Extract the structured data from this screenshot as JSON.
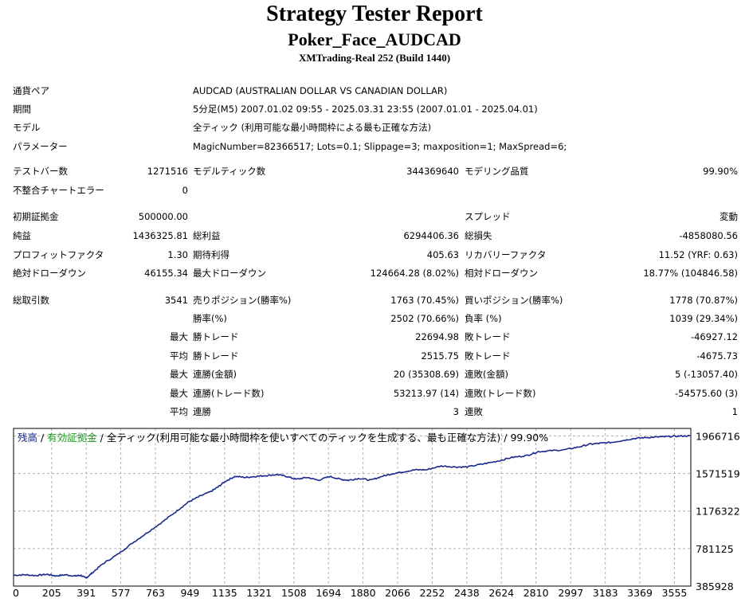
{
  "header": {
    "title": "Strategy Tester Report",
    "ea_name": "Poker_Face_AUDCAD",
    "server": "XMTrading-Real 252 (Build 1440)"
  },
  "settings": [
    {
      "label": "通貨ペア",
      "value": "AUDCAD (AUSTRALIAN DOLLAR VS CANADIAN DOLLAR)"
    },
    {
      "label": "期間",
      "value": "5分足(M5) 2007.01.02 09:55 - 2025.03.31 23:55 (2007.01.01 - 2025.04.01)"
    },
    {
      "label": "モデル",
      "value": "全ティック (利用可能な最小時間枠による最も正確な方法)"
    },
    {
      "label": "パラメーター",
      "value": "MagicNumber=82366517; Lots=0.1; Slippage=3; maxposition=1; MaxSpread=6;"
    }
  ],
  "test_info": {
    "bars_label": "テストバー数",
    "bars_value": "1271516",
    "ticks_label": "モデルティック数",
    "ticks_value": "344369640",
    "quality_label": "モデリング品質",
    "quality_value": "99.90%",
    "errors_label": "不整合チャートエラー",
    "errors_value": "0"
  },
  "results": {
    "initial_deposit_label": "初期証拠金",
    "initial_deposit_value": "500000.00",
    "spread_label": "スプレッド",
    "spread_value": "変動",
    "net_profit_label": "純益",
    "net_profit_value": "1436325.81",
    "gross_profit_label": "総利益",
    "gross_profit_value": "6294406.36",
    "gross_loss_label": "総損失",
    "gross_loss_value": "-4858080.56",
    "profit_factor_label": "プロフィットファクタ",
    "profit_factor_value": "1.30",
    "expected_payoff_label": "期待利得",
    "expected_payoff_value": "405.63",
    "recovery_factor_label": "リカバリーファクタ",
    "recovery_factor_value": "11.52 (YRF: 0.63)",
    "abs_dd_label": "絶対ドローダウン",
    "abs_dd_value": "46155.34",
    "max_dd_label": "最大ドローダウン",
    "max_dd_value": "124664.28 (8.02%)",
    "rel_dd_label": "相対ドローダウン",
    "rel_dd_value": "18.77% (104846.58)"
  },
  "trades": {
    "total_label": "総取引数",
    "total_value": "3541",
    "short_label": "売りポジション(勝率%)",
    "short_value": "1763 (70.45%)",
    "long_label": "買いポジション(勝率%)",
    "long_value": "1778 (70.87%)",
    "win_rate_label": "勝率(%)",
    "win_rate_value": "2502 (70.66%)",
    "loss_rate_label": "負率 (%)",
    "loss_rate_value": "1039 (29.34%)",
    "max_label": "最大",
    "avg_label": "平均",
    "largest_win_label": "勝トレード",
    "largest_win_value": "22694.98",
    "largest_loss_label": "敗トレード",
    "largest_loss_value": "-46927.12",
    "average_win_label": "勝トレード",
    "average_win_value": "2515.75",
    "average_loss_label": "敗トレード",
    "average_loss_value": "-4675.73",
    "max_consec_wins_label": "連勝(金額)",
    "max_consec_wins_value": "20 (35308.69)",
    "max_consec_losses_label": "連敗(金額)",
    "max_consec_losses_value": "5 (-13057.40)",
    "max_consec_profit_label": "連勝(トレード数)",
    "max_consec_profit_value": "53213.97 (14)",
    "max_consec_loss_label": "連敗(トレード数)",
    "max_consec_loss_value": "-54575.60 (3)",
    "avg_consec_wins_label": "連勝",
    "avg_consec_wins_value": "3",
    "avg_consec_losses_label": "連敗",
    "avg_consec_losses_value": "1"
  },
  "chart_legend": {
    "balance": "残高",
    "sep1": " / ",
    "equity": "有効証拠金",
    "sep2": " / ",
    "model": "全ティック(利用可能な最小時間枠を使いすべてのティックを生成する、最も正確な方法)",
    "sep3": " / ",
    "quality": "99.90%"
  },
  "chart_data": {
    "type": "line",
    "title": "",
    "xlabel": "",
    "ylabel": "",
    "x_ticks": [
      0,
      205,
      391,
      577,
      763,
      949,
      1135,
      1321,
      1508,
      1694,
      1880,
      2066,
      2252,
      2438,
      2624,
      2810,
      2997,
      3183,
      3369,
      3555
    ],
    "y_ticks": [
      385928,
      781125,
      1176322,
      1571519,
      1966716
    ],
    "xlim": [
      0,
      3643
    ],
    "ylim": [
      385928,
      2045755
    ],
    "grid": true,
    "colors": {
      "balance": "#1a2a8c",
      "equity": "#1e9a1e",
      "grid": "#b0b0b0",
      "border": "#000000"
    },
    "series": [
      {
        "name": "残高",
        "x": [
          0,
          60,
          120,
          180,
          230,
          280,
          330,
          360,
          390,
          420,
          480,
          560,
          640,
          720,
          800,
          880,
          940,
          1000,
          1060,
          1100,
          1140,
          1190,
          1250,
          1300,
          1360,
          1420,
          1470,
          1520,
          1580,
          1640,
          1700,
          1760,
          1800,
          1860,
          1920,
          1980,
          2040,
          2100,
          2160,
          2220,
          2300,
          2380,
          2440,
          2520,
          2600,
          2680,
          2760,
          2820,
          2880,
          2960,
          3040,
          3100,
          3160,
          3220,
          3280,
          3340,
          3400,
          3460,
          3520,
          3580,
          3640
        ],
        "y": [
          500000,
          505000,
          497000,
          510000,
          493000,
          505000,
          492000,
          500000,
          470000,
          520000,
          620000,
          720000,
          840000,
          950000,
          1060000,
          1180000,
          1270000,
          1330000,
          1380000,
          1430000,
          1490000,
          1540000,
          1530000,
          1540000,
          1550000,
          1560000,
          1540000,
          1510000,
          1530000,
          1500000,
          1540000,
          1510000,
          1500000,
          1520000,
          1500000,
          1540000,
          1570000,
          1590000,
          1610000,
          1610000,
          1650000,
          1640000,
          1640000,
          1670000,
          1700000,
          1740000,
          1760000,
          1800000,
          1810000,
          1820000,
          1850000,
          1880000,
          1890000,
          1900000,
          1920000,
          1940000,
          1950000,
          1955000,
          1960000,
          1965000,
          1966716
        ]
      }
    ]
  }
}
